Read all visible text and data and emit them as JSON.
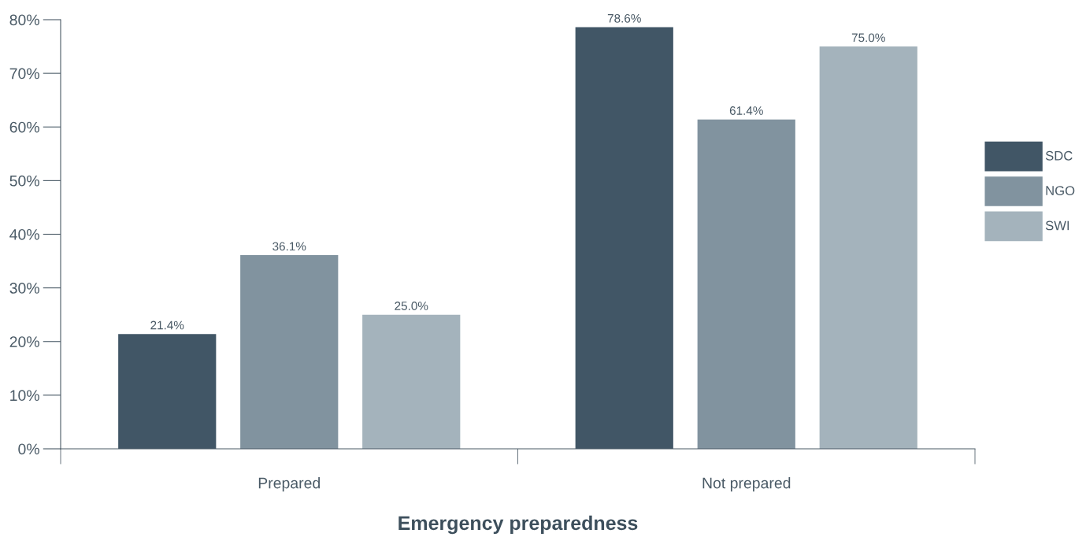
{
  "chart_data": {
    "type": "bar",
    "xlabel": "Emergency preparedness",
    "categories": [
      "Prepared",
      "Not prepared"
    ],
    "series": [
      {
        "name": "SDC",
        "color": "#415666",
        "values": [
          21.4,
          78.6
        ],
        "value_labels": [
          "21.4%",
          "78.6%"
        ]
      },
      {
        "name": "NGO",
        "color": "#81939f",
        "values": [
          36.1,
          61.4
        ],
        "value_labels": [
          "36.1%",
          "61.4%"
        ]
      },
      {
        "name": "SWI",
        "color": "#a4b3bc",
        "values": [
          25.0,
          75.0
        ],
        "value_labels": [
          "25.0%",
          "75.0%"
        ]
      }
    ],
    "ylim": [
      0,
      80
    ],
    "yticks": [
      {
        "value": 0,
        "label": "0%"
      },
      {
        "value": 10,
        "label": "10%"
      },
      {
        "value": 20,
        "label": "20%"
      },
      {
        "value": 30,
        "label": "30%"
      },
      {
        "value": 40,
        "label": "40%"
      },
      {
        "value": 50,
        "label": "50%"
      },
      {
        "value": 60,
        "label": "60%"
      },
      {
        "value": 70,
        "label": "70%"
      },
      {
        "value": 80,
        "label": "80%"
      }
    ],
    "grid": false,
    "legend": "right"
  }
}
